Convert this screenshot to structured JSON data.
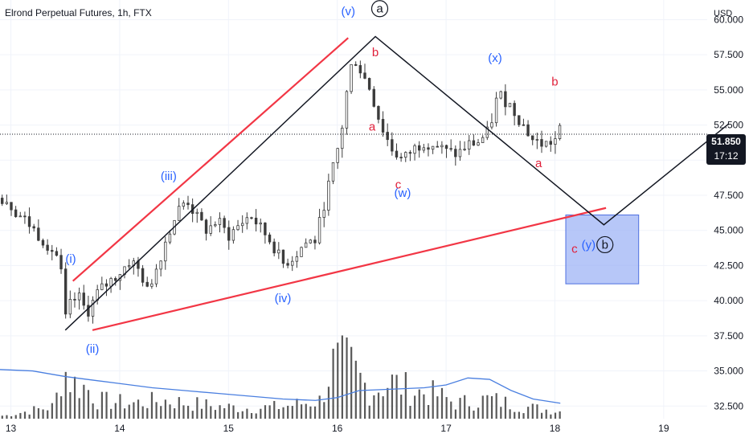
{
  "header": {
    "title": "Elrond Perpetual Futures, 1h, FTX"
  },
  "colors": {
    "candle": "#3c3c3c",
    "volume": "#595959",
    "ma": "#4a7fe0",
    "red_line": "#f23645",
    "wave_blue": "#2962ff",
    "wave_red": "#e0203a",
    "box_fill": "#9fb4f5",
    "box_stroke": "#4d6fe0",
    "grid": "#f0f3fa",
    "axis_text": "#131722"
  },
  "chart_data": {
    "type": "candlestick",
    "title": "Elrond Perpetual Futures, 1h, FTX",
    "currency": "USD",
    "x_tick_labels": [
      "13",
      "14",
      "15",
      "16",
      "17",
      "18",
      "19"
    ],
    "y_tick_values": [
      32.5,
      35.0,
      37.5,
      40.0,
      42.5,
      45.0,
      47.5,
      50.0,
      52.5,
      55.0,
      57.5,
      60.0
    ],
    "y_tick_labels": [
      "32.500",
      "35.000",
      "37.500",
      "40.000",
      "42.500",
      "45.000",
      "47.500",
      "50.000",
      "52.500",
      "55.000",
      "57.500",
      "60.000"
    ],
    "ylim": [
      31.6,
      61.4
    ],
    "xlim": [
      12.9,
      19.4
    ],
    "last_price": "51.850",
    "countdown": "17:12",
    "close_path": [
      [
        12.95,
        47.3
      ],
      [
        13.05,
        46.3
      ],
      [
        13.15,
        45.6
      ],
      [
        13.25,
        44.7
      ],
      [
        13.35,
        43.9
      ],
      [
        13.45,
        42.9
      ],
      [
        13.5,
        38.6
      ],
      [
        13.55,
        39.8
      ],
      [
        13.62,
        40.3
      ],
      [
        13.7,
        39.1
      ],
      [
        13.8,
        40.6
      ],
      [
        13.9,
        41.3
      ],
      [
        14.0,
        42.0
      ],
      [
        14.1,
        42.9
      ],
      [
        14.2,
        41.9
      ],
      [
        14.25,
        40.6
      ],
      [
        14.35,
        42.6
      ],
      [
        14.45,
        44.9
      ],
      [
        14.55,
        46.6
      ],
      [
        14.62,
        47.2
      ],
      [
        14.7,
        46.0
      ],
      [
        14.8,
        45.0
      ],
      [
        14.9,
        45.7
      ],
      [
        15.0,
        44.6
      ],
      [
        15.1,
        45.4
      ],
      [
        15.2,
        46.1
      ],
      [
        15.3,
        45.1
      ],
      [
        15.4,
        44.1
      ],
      [
        15.5,
        42.6
      ],
      [
        15.6,
        43.1
      ],
      [
        15.7,
        44.1
      ],
      [
        15.8,
        44.3
      ],
      [
        15.9,
        47.6
      ],
      [
        16.0,
        50.6
      ],
      [
        16.05,
        52.6
      ],
      [
        16.1,
        55.6
      ],
      [
        16.15,
        57.4
      ],
      [
        16.2,
        56.6
      ],
      [
        16.3,
        55.1
      ],
      [
        16.4,
        52.5
      ],
      [
        16.5,
        50.8
      ],
      [
        16.6,
        50.0
      ],
      [
        16.7,
        50.8
      ],
      [
        16.8,
        51.3
      ],
      [
        16.9,
        51.1
      ],
      [
        17.0,
        50.6
      ],
      [
        17.1,
        50.4
      ],
      [
        17.2,
        51.1
      ],
      [
        17.3,
        51.3
      ],
      [
        17.4,
        52.1
      ],
      [
        17.45,
        54.1
      ],
      [
        17.5,
        54.6
      ],
      [
        17.6,
        53.8
      ],
      [
        17.7,
        52.6
      ],
      [
        17.8,
        51.4
      ],
      [
        17.9,
        51.1
      ],
      [
        18.0,
        51.4
      ],
      [
        18.05,
        52.2
      ]
    ],
    "volume_path": [
      [
        12.95,
        0.05
      ],
      [
        13.2,
        0.14
      ],
      [
        13.4,
        0.2
      ],
      [
        13.48,
        0.85
      ],
      [
        13.55,
        0.6
      ],
      [
        13.7,
        0.5
      ],
      [
        13.8,
        0.3
      ],
      [
        14.1,
        0.25
      ],
      [
        14.4,
        0.3
      ],
      [
        14.6,
        0.26
      ],
      [
        14.9,
        0.2
      ],
      [
        15.2,
        0.17
      ],
      [
        15.5,
        0.2
      ],
      [
        15.85,
        0.3
      ],
      [
        15.95,
        0.88
      ],
      [
        16.1,
        0.9
      ],
      [
        16.3,
        0.45
      ],
      [
        16.5,
        0.6
      ],
      [
        16.7,
        0.45
      ],
      [
        16.9,
        0.4
      ],
      [
        17.1,
        0.25
      ],
      [
        17.4,
        0.32
      ],
      [
        17.7,
        0.2
      ],
      [
        18.05,
        0.12
      ]
    ],
    "ma_path": [
      [
        12.9,
        35.1
      ],
      [
        13.2,
        35.0
      ],
      [
        13.5,
        34.6
      ],
      [
        13.8,
        34.3
      ],
      [
        14.0,
        34.1
      ],
      [
        14.3,
        33.8
      ],
      [
        14.6,
        33.6
      ],
      [
        14.9,
        33.4
      ],
      [
        15.2,
        33.2
      ],
      [
        15.5,
        33.0
      ],
      [
        15.8,
        32.9
      ],
      [
        16.0,
        33.1
      ],
      [
        16.2,
        33.6
      ],
      [
        16.5,
        33.7
      ],
      [
        16.8,
        33.8
      ],
      [
        17.0,
        34.0
      ],
      [
        17.2,
        34.5
      ],
      [
        17.4,
        34.4
      ],
      [
        17.6,
        33.6
      ],
      [
        17.8,
        33.0
      ],
      [
        18.05,
        32.7
      ]
    ],
    "annotations": {
      "red_upper_channel": [
        [
          13.57,
          41.4
        ],
        [
          16.1,
          58.7
        ]
      ],
      "red_lower_trendline": [
        [
          13.75,
          37.9
        ],
        [
          18.47,
          46.6
        ]
      ],
      "black_path": [
        [
          13.5,
          37.9
        ],
        [
          16.35,
          58.8
        ],
        [
          18.45,
          45.4
        ],
        [
          19.6,
          52.6
        ]
      ],
      "box": {
        "x1": 18.1,
        "y1": 41.2,
        "x2": 18.77,
        "y2": 46.1
      },
      "labels": [
        {
          "text": "(i)",
          "x": 13.55,
          "y": 42.7,
          "color": "blue"
        },
        {
          "text": "(ii)",
          "x": 13.75,
          "y": 36.3,
          "color": "blue"
        },
        {
          "text": "(iii)",
          "x": 14.45,
          "y": 48.6,
          "color": "blue"
        },
        {
          "text": "(iv)",
          "x": 15.5,
          "y": 39.9,
          "color": "blue"
        },
        {
          "text": "(v)",
          "x": 16.1,
          "y": 60.3,
          "color": "blue"
        },
        {
          "text": "a",
          "x": 16.39,
          "y": 60.5,
          "color": "black",
          "circled": true
        },
        {
          "text": "b",
          "x": 16.35,
          "y": 57.4,
          "color": "red"
        },
        {
          "text": "a",
          "x": 16.32,
          "y": 52.1,
          "color": "red"
        },
        {
          "text": "c",
          "x": 16.56,
          "y": 48.0,
          "color": "red"
        },
        {
          "text": "(w)",
          "x": 16.6,
          "y": 47.4,
          "color": "blue"
        },
        {
          "text": "(x)",
          "x": 17.45,
          "y": 57.0,
          "color": "blue"
        },
        {
          "text": "b",
          "x": 18.0,
          "y": 55.3,
          "color": "red"
        },
        {
          "text": "a",
          "x": 17.85,
          "y": 49.5,
          "color": "red"
        },
        {
          "text": "c",
          "x": 18.18,
          "y": 43.4,
          "color": "red"
        },
        {
          "text": "(y)",
          "x": 18.31,
          "y": 43.7,
          "color": "blue"
        },
        {
          "text": "b",
          "x": 18.46,
          "y": 43.7,
          "color": "black",
          "circled": true
        }
      ]
    }
  }
}
